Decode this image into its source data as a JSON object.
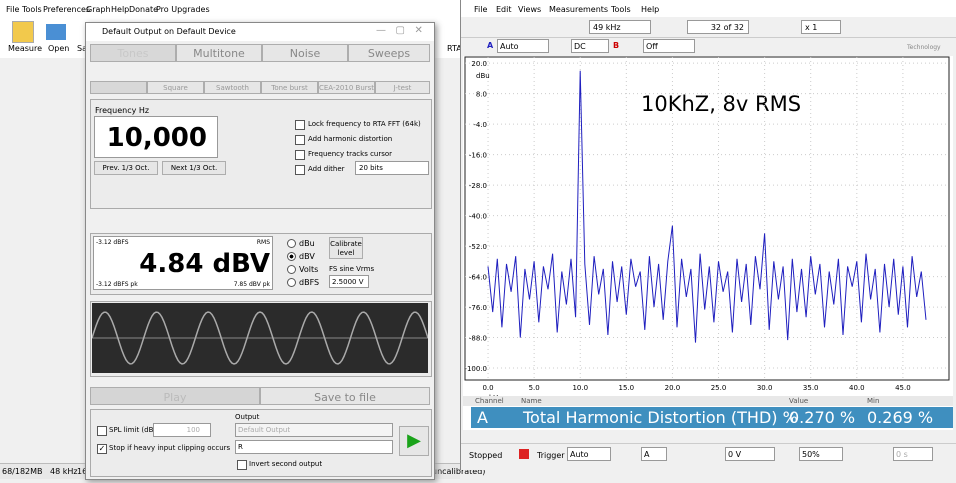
{
  "left_app": {
    "menu": [
      "File",
      "Tools",
      "Preferences",
      "Graph",
      "Help",
      "Donate",
      "Pro Upgrades"
    ],
    "toolbar": [
      "Measure",
      "Open",
      "Sa"
    ],
    "rta": "RTA",
    "status": [
      "68/182MB",
      "48 kHz",
      "16",
      "uncalibrated)"
    ]
  },
  "dialog": {
    "title": "Default Output on Default Device",
    "tabs": [
      "Tones",
      "Multitone",
      "Noise",
      "Sweeps"
    ],
    "subtabs": [
      "Square",
      "Sawtooth",
      "Tone burst",
      "CEA-2010 Burst",
      "J-test"
    ],
    "frequency_label": "Frequency Hz",
    "frequency": "10,000",
    "prev": "Prev. 1/3 Oct.",
    "next": "Next 1/3 Oct.",
    "options": [
      "Lock frequency to RTA FFT (64k)",
      "Add harmonic distortion",
      "Frequency tracks cursor",
      "Add dither"
    ],
    "dither": "20 bits",
    "level": {
      "dbfs": "-3.12 dBFS",
      "rms": "RMS",
      "value": "4.84 dBV",
      "dbfs_pk": "-3.12 dBFS pk",
      "dbv_pk": "7.85 dBV pk"
    },
    "units": [
      "dBu",
      "dBV",
      "Volts",
      "dBFS"
    ],
    "calibrate": "Calibrate level",
    "fs_label": "FS sine Vrms",
    "fs_value": "2.5000 V",
    "play": "Play",
    "save": "Save to file",
    "spl_limit": "SPL limit (dB):",
    "spl_value": "100",
    "stop_clipping": "Stop if heavy input clipping occurs",
    "output_label": "Output",
    "output_device": "Default Output",
    "output_channel": "R",
    "invert": "Invert second output"
  },
  "scope": {
    "menu": [
      "File",
      "Edit",
      "Views",
      "Measurements",
      "Tools",
      "Help"
    ],
    "span": "49 kHz",
    "page": "32 of 32",
    "zoom": "x 1",
    "channel_a": "A",
    "range_a": "Auto",
    "coupling_a": "DC",
    "channel_b": "B",
    "range_b": "Off",
    "brand": "Technology",
    "table": {
      "headers": [
        "Channel",
        "Name",
        "Value",
        "Min"
      ],
      "rows": [
        [
          "A",
          "Total Harmonic Distortion (THD) %",
          "0.270 %",
          "0.269 %"
        ]
      ]
    },
    "status": {
      "state": "Stopped",
      "trigger_label": "Trigger",
      "trigger_mode": "Auto",
      "trigger_channel": "A",
      "threshold": "0 V",
      "pretrigger": "50%",
      "delay": "0 s"
    }
  },
  "chart_data": {
    "type": "line",
    "annotation": "10KhZ, 8v RMS",
    "y_unit": "dBu",
    "x_unit": "kHz",
    "x": [
      0,
      0.5,
      1,
      1.5,
      2,
      2.5,
      3,
      3.5,
      4,
      4.5,
      5,
      5.5,
      6,
      6.5,
      7,
      7.5,
      8,
      8.5,
      9,
      9.5,
      10,
      10.5,
      11,
      11.5,
      12,
      12.5,
      13,
      13.5,
      14,
      14.5,
      15,
      15.5,
      16,
      16.5,
      17,
      17.5,
      18,
      18.5,
      19,
      19.5,
      20,
      20.5,
      21,
      21.5,
      22,
      22.5,
      23,
      23.5,
      24,
      24.5,
      25,
      25.5,
      26,
      26.5,
      27,
      27.5,
      28,
      28.5,
      29,
      29.5,
      30,
      30.5,
      31,
      31.5,
      32,
      32.5,
      33,
      33.5,
      34,
      34.5,
      35,
      35.5,
      36,
      36.5,
      37,
      37.5,
      38,
      38.5,
      39,
      39.5,
      40,
      40.5,
      41,
      41.5,
      42,
      42.5,
      43,
      43.5,
      44,
      44.5,
      45,
      45.5,
      46,
      46.5,
      47,
      47.5
    ],
    "series": [
      {
        "name": "A",
        "color": "#1f1fbf",
        "values": [
          -60,
          -78,
          -57,
          -84,
          -59,
          -70,
          -56,
          -88,
          -61,
          -73,
          -58,
          -82,
          -60,
          -69,
          -55,
          -86,
          -62,
          -75,
          -57,
          -80,
          17,
          -59,
          -83,
          -56,
          -71,
          -61,
          -87,
          -58,
          -74,
          -60,
          -79,
          -57,
          -68,
          -62,
          -85,
          -56,
          -76,
          -59,
          -81,
          -58,
          -44,
          -84,
          -57,
          -72,
          -61,
          -90,
          -55,
          -77,
          -60,
          -82,
          -58,
          -70,
          -62,
          -86,
          -57,
          -74,
          -59,
          -83,
          -56,
          -69,
          -47,
          -85,
          -58,
          -73,
          -60,
          -89,
          -57,
          -78,
          -61,
          -80,
          -56,
          -71,
          -59,
          -84,
          -62,
          -75,
          -57,
          -87,
          -60,
          -68,
          -58,
          -82,
          -55,
          -73,
          -61,
          -86,
          -59,
          -76,
          -57,
          -79,
          -60,
          -84,
          -56,
          -72,
          -62,
          -81
        ]
      }
    ],
    "xlim": [
      -2.5,
      50
    ],
    "ylim": [
      -104.7,
      22.4
    ],
    "xticks": [
      {
        "value": 0,
        "label": "0.0"
      },
      {
        "value": 5,
        "label": "5.0"
      },
      {
        "value": 10,
        "label": "10.0"
      },
      {
        "value": 15,
        "label": "15.0"
      },
      {
        "value": 20,
        "label": "20.0"
      },
      {
        "value": 25,
        "label": "25.0"
      },
      {
        "value": 30,
        "label": "30.0"
      },
      {
        "value": 35,
        "label": "35.0"
      },
      {
        "value": 40,
        "label": "40.0"
      },
      {
        "value": 45,
        "label": "45.0"
      }
    ],
    "yticks": [
      {
        "value": 20,
        "label": "20.0"
      },
      {
        "value": 8,
        "label": "8.0"
      },
      {
        "value": -4,
        "label": "-4.0"
      },
      {
        "value": -16,
        "label": "-16.0"
      },
      {
        "value": -28,
        "label": "-28.0"
      },
      {
        "value": -40,
        "label": "-40.0"
      },
      {
        "value": -52,
        "label": "-52.0"
      },
      {
        "value": -64,
        "label": "-64.0"
      },
      {
        "value": -76,
        "label": "-76.0"
      },
      {
        "value": -88,
        "label": "-88.0"
      },
      {
        "value": -100,
        "label": "-100.0"
      }
    ],
    "grid": true
  }
}
